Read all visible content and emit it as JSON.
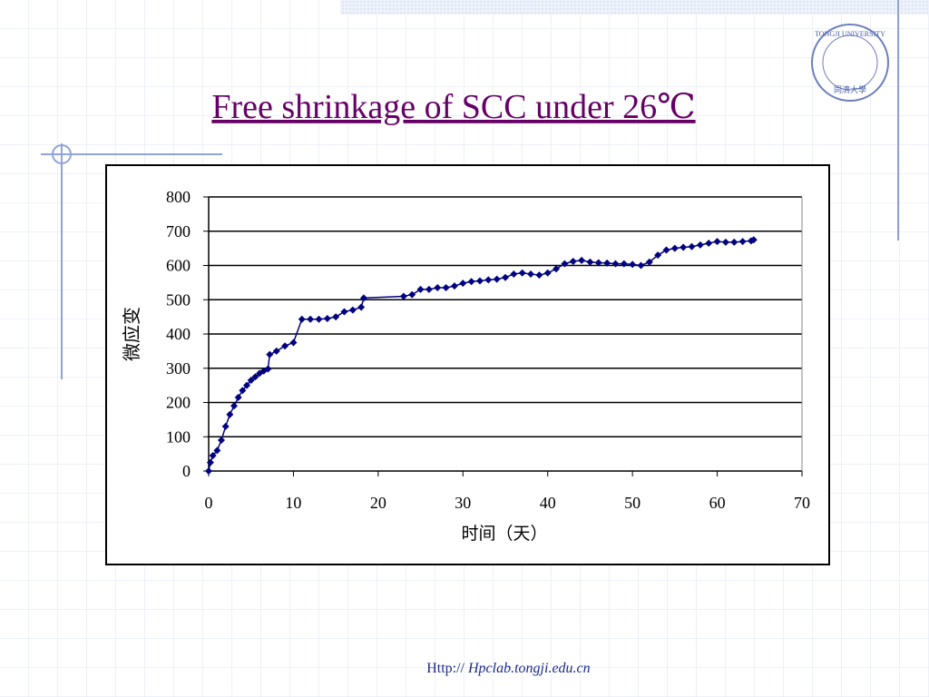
{
  "title": "Free shrinkage of SCC under 26℃",
  "logo": {
    "text": "TONGJI UNIVERSITY",
    "subtext": "同濟大學"
  },
  "footer": {
    "prefix": "Http://",
    "link": "Hpclab.tongji.edu.cn"
  },
  "chart_data": {
    "type": "line",
    "color": "#000080",
    "grid": true,
    "x_label": "时间（天）",
    "y_label": "微应变",
    "xlim": [
      0,
      70
    ],
    "xticks": [
      0,
      10,
      20,
      30,
      40,
      50,
      60,
      70
    ],
    "ylim": [
      0,
      800
    ],
    "yticks": [
      0,
      100,
      200,
      300,
      400,
      500,
      600,
      700,
      800
    ],
    "x": [
      0,
      0.2,
      0.5,
      1,
      1.5,
      2,
      2.5,
      3,
      3.5,
      4,
      4.5,
      5,
      5.5,
      6,
      6.5,
      7,
      7.2,
      8,
      9,
      10,
      11,
      12,
      13,
      14,
      15,
      16,
      17,
      18,
      18.3,
      23,
      24,
      25,
      26,
      27,
      28,
      29,
      30,
      31,
      32,
      33,
      34,
      35,
      36,
      37,
      38,
      39,
      40,
      41,
      42,
      43,
      44,
      45,
      46,
      47,
      48,
      49,
      50,
      51,
      52,
      53,
      54,
      55,
      56,
      57,
      58,
      59,
      60,
      61,
      62,
      63,
      64,
      64.3
    ],
    "series": [
      {
        "values": [
          0,
          25,
          45,
          60,
          90,
          130,
          165,
          190,
          215,
          235,
          250,
          265,
          275,
          285,
          292,
          298,
          340,
          350,
          365,
          375,
          443,
          443,
          443,
          445,
          450,
          465,
          470,
          478,
          505,
          510,
          515,
          530,
          530,
          535,
          535,
          540,
          548,
          553,
          555,
          558,
          560,
          565,
          575,
          578,
          575,
          572,
          578,
          590,
          605,
          612,
          615,
          610,
          608,
          607,
          605,
          605,
          603,
          600,
          610,
          630,
          645,
          650,
          653,
          655,
          660,
          665,
          670,
          668,
          668,
          670,
          672,
          675
        ]
      }
    ]
  }
}
